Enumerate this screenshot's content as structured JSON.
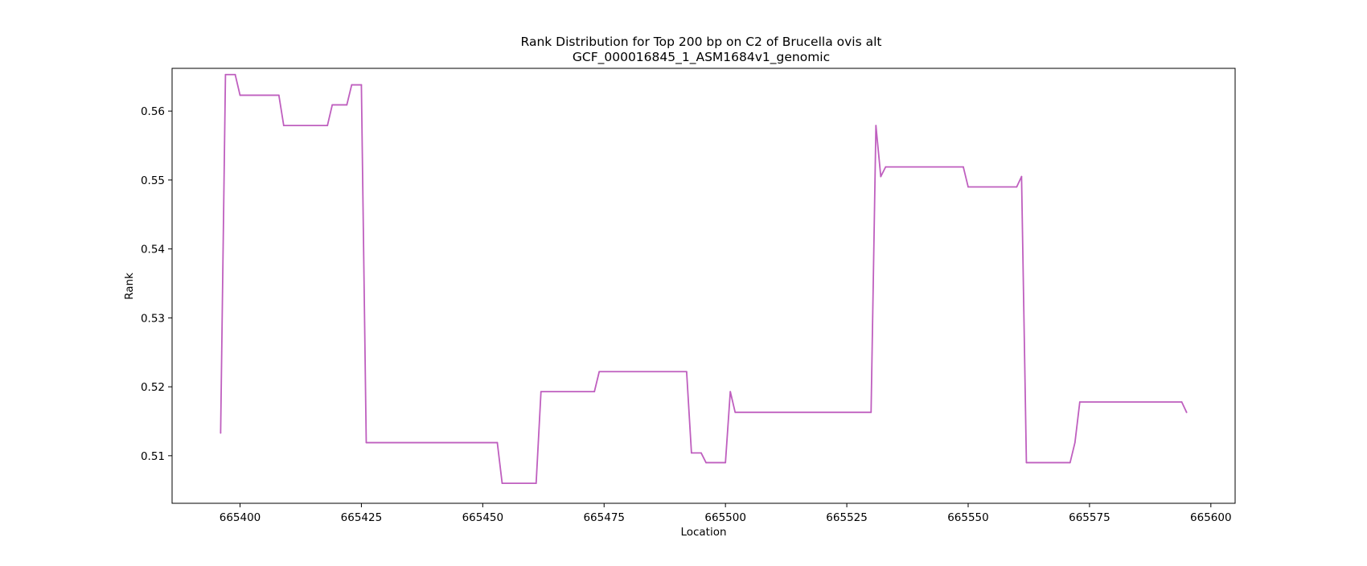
{
  "chart_data": {
    "type": "line",
    "title": "Rank Distribution for Top 200 bp on C2 of Brucella ovis alt",
    "subtitle": "GCF_000016845_1_ASM1684v1_genomic",
    "xlabel": "Location",
    "ylabel": "Rank",
    "xlim": [
      665386,
      665605
    ],
    "ylim": [
      0.5031,
      0.5662
    ],
    "xticks": [
      665400,
      665425,
      665450,
      665475,
      665500,
      665525,
      665550,
      665575,
      665600
    ],
    "yticks": [
      0.51,
      0.52,
      0.53,
      0.54,
      0.55,
      0.56
    ],
    "xtick_labels": [
      "665400",
      "665425",
      "665450",
      "665475",
      "665500",
      "665525",
      "665550",
      "665575",
      "665600"
    ],
    "ytick_labels": [
      "0.51",
      "0.52",
      "0.53",
      "0.54",
      "0.55",
      "0.56"
    ],
    "grid": false,
    "legend": "none",
    "series": [
      {
        "color": "#bf5fbf",
        "x": [
          665396,
          665397,
          665399,
          665400,
          665408,
          665409,
          665418,
          665419,
          665422,
          665423,
          665425,
          665426,
          665453,
          665454,
          665461,
          665462,
          665473,
          665474,
          665492,
          665493,
          665495,
          665496,
          665500,
          665501,
          665502,
          665530,
          665531,
          665532,
          665533,
          665549,
          665550,
          665560,
          665561,
          665562,
          665571,
          665572,
          665573,
          665594,
          665595
        ],
        "y": [
          0.5133,
          0.5653,
          0.5653,
          0.5623,
          0.5623,
          0.5579,
          0.5579,
          0.5609,
          0.5609,
          0.5638,
          0.5638,
          0.5119,
          0.5119,
          0.506,
          0.506,
          0.5193,
          0.5193,
          0.5222,
          0.5222,
          0.5104,
          0.5104,
          0.509,
          0.509,
          0.5193,
          0.5163,
          0.5163,
          0.5579,
          0.5505,
          0.5519,
          0.5519,
          0.549,
          0.549,
          0.5505,
          0.509,
          0.509,
          0.5119,
          0.5178,
          0.5178,
          0.5163
        ]
      }
    ]
  }
}
